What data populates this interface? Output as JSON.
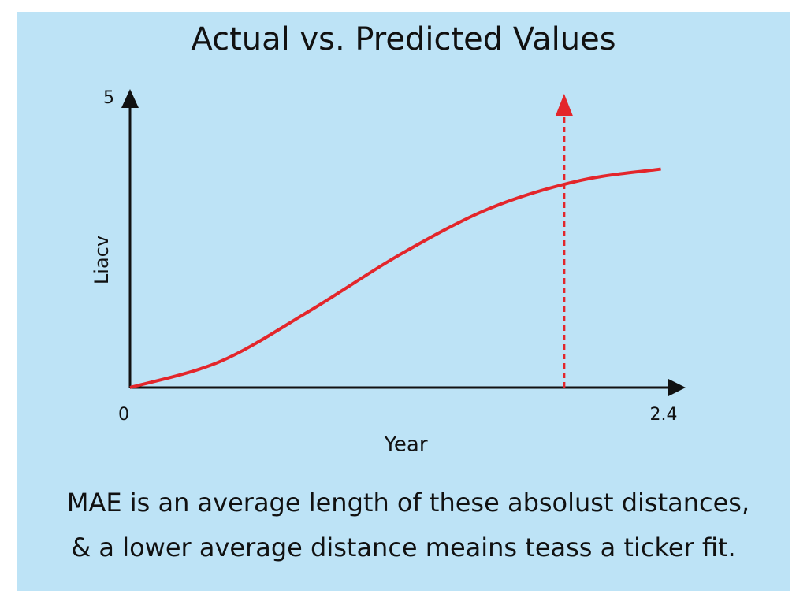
{
  "chart_data": {
    "type": "line",
    "title": "Actual vs.  Predicted Values",
    "x_label": "Year",
    "y_label": "Liacv",
    "x": [
      0,
      0.4,
      0.8,
      1.2,
      1.6,
      2.0,
      2.36
    ],
    "values": [
      0,
      0.45,
      1.33,
      2.3,
      3.1,
      3.58,
      3.78
    ],
    "color": "#e3262b",
    "marker_x": 1.93,
    "xlim": [
      0,
      2.4
    ],
    "xticks": [
      0,
      2.4
    ],
    "ylim": [
      0,
      5
    ],
    "yticks": [
      5
    ],
    "grid": false,
    "caption": [
      "MAE is an average length of these absolust distances,",
      "& a lower average distance meains teass a ticker fit."
    ]
  }
}
